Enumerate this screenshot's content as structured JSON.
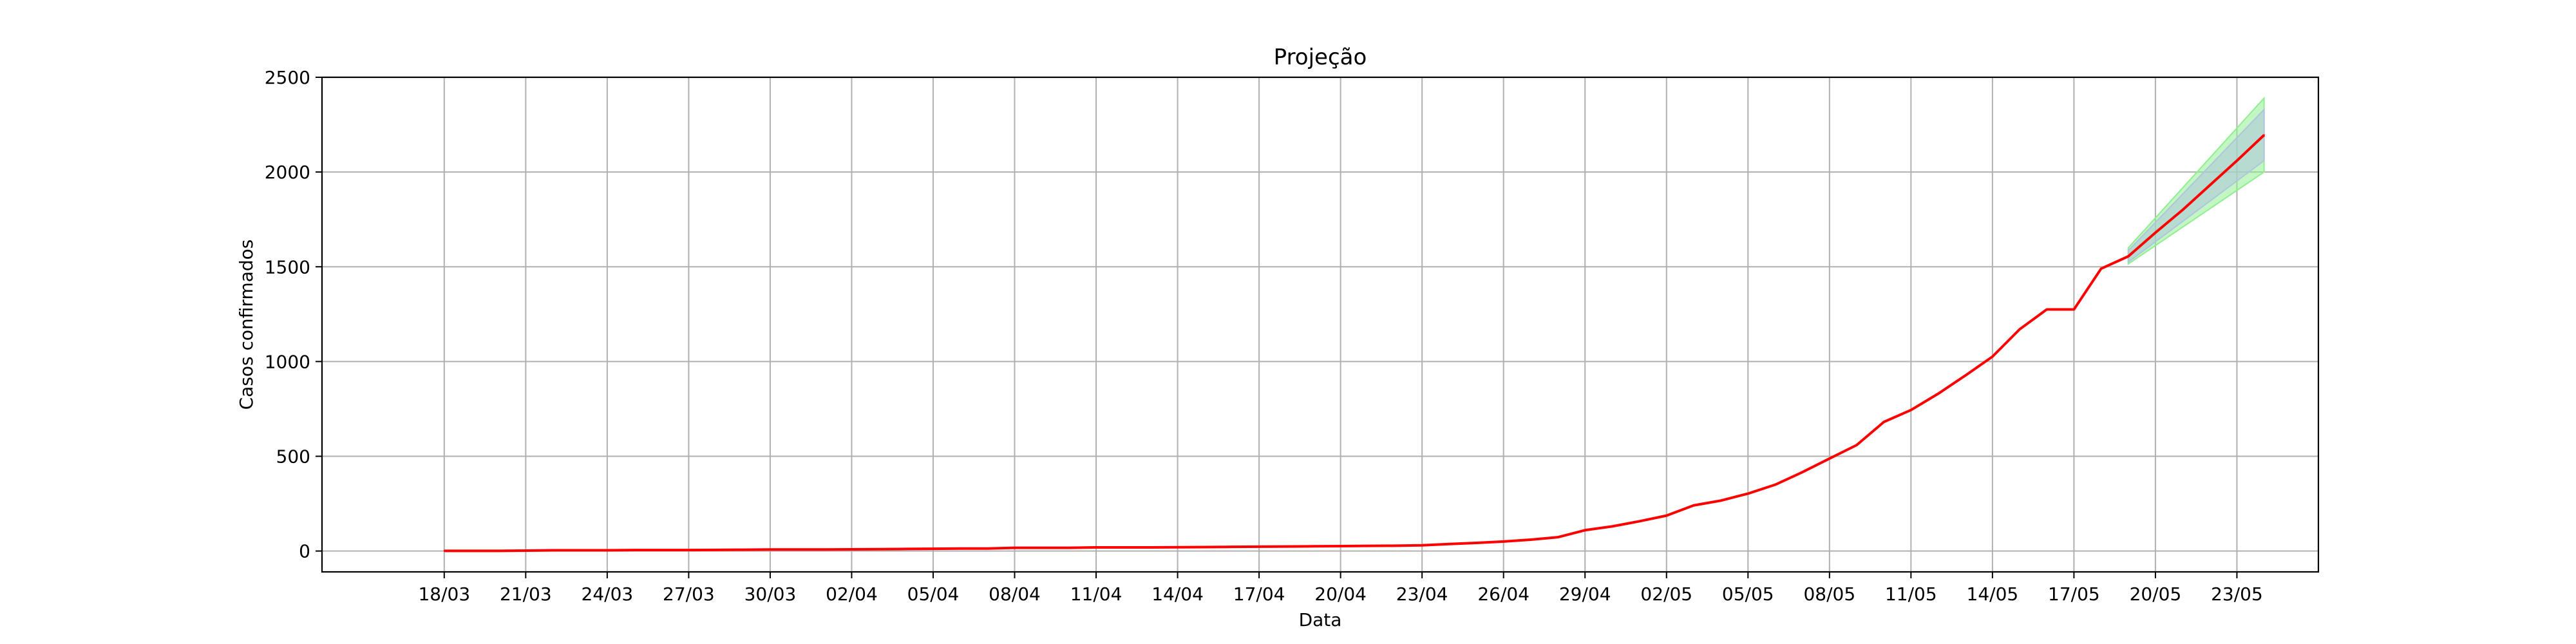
{
  "chart_data": {
    "type": "line",
    "title": "Projeção",
    "xlabel": "Data",
    "ylabel": "Casos confirmados",
    "ylim": [
      -110,
      2500
    ],
    "xlim": [
      -4.5,
      69.0
    ],
    "grid": true,
    "y_ticks": [
      0,
      500,
      1000,
      1500,
      2000,
      2500
    ],
    "x_ticks": [
      {
        "x": 0,
        "label": "18/03"
      },
      {
        "x": 3,
        "label": "21/03"
      },
      {
        "x": 6,
        "label": "24/03"
      },
      {
        "x": 9,
        "label": "27/03"
      },
      {
        "x": 12,
        "label": "30/03"
      },
      {
        "x": 15,
        "label": "02/04"
      },
      {
        "x": 18,
        "label": "05/04"
      },
      {
        "x": 21,
        "label": "08/04"
      },
      {
        "x": 24,
        "label": "11/04"
      },
      {
        "x": 27,
        "label": "14/04"
      },
      {
        "x": 30,
        "label": "17/04"
      },
      {
        "x": 33,
        "label": "20/04"
      },
      {
        "x": 36,
        "label": "23/04"
      },
      {
        "x": 39,
        "label": "26/04"
      },
      {
        "x": 42,
        "label": "29/04"
      },
      {
        "x": 45,
        "label": "02/05"
      },
      {
        "x": 48,
        "label": "05/05"
      },
      {
        "x": 51,
        "label": "08/05"
      },
      {
        "x": 54,
        "label": "11/05"
      },
      {
        "x": 57,
        "label": "14/05"
      },
      {
        "x": 60,
        "label": "17/05"
      },
      {
        "x": 63,
        "label": "20/05"
      },
      {
        "x": 66,
        "label": "23/05"
      }
    ],
    "colors": {
      "line": "#ff0000",
      "band_inner": "#b0c4de",
      "band_outer": "#90ee90",
      "grid": "#b0b0b0",
      "axes": "#000000"
    },
    "series": [
      {
        "color": "#ff0000",
        "x": [
          0,
          1,
          2,
          3,
          4,
          5,
          6,
          7,
          8,
          9,
          10,
          11,
          12,
          13,
          14,
          15,
          16,
          17,
          18,
          19,
          20,
          21,
          22,
          23,
          24,
          25,
          26,
          27,
          28,
          29,
          30,
          31,
          32,
          33,
          34,
          35,
          36,
          37,
          38,
          39,
          40,
          41,
          42,
          43,
          44,
          45,
          46,
          47,
          48,
          49,
          50,
          51,
          52,
          53,
          54,
          55,
          56,
          57,
          58,
          59,
          60,
          61,
          62,
          63,
          64,
          65,
          66,
          67
        ],
        "y": [
          1,
          1,
          1,
          2,
          4,
          4,
          4,
          5,
          5,
          5,
          6,
          7,
          8,
          8,
          8,
          9,
          10,
          11,
          12,
          13,
          13,
          17,
          17,
          17,
          19,
          19,
          19,
          20,
          21,
          22,
          23,
          24,
          25,
          26,
          27,
          28,
          30,
          37,
          43,
          50,
          60,
          73,
          110,
          130,
          157,
          187,
          241,
          266,
          303,
          350,
          416,
          488,
          559,
          681,
          744,
          830,
          926,
          1026,
          1170,
          1275,
          1275,
          1490,
          1555,
          1680,
          1800,
          1930,
          2060,
          2195
        ]
      }
    ],
    "bands": [
      {
        "color": "#90ee90",
        "x": [
          62,
          67
        ],
        "lower": [
          1515,
          2000
        ],
        "upper": [
          1600,
          2390
        ]
      },
      {
        "color": "#b0c4de",
        "x": [
          62,
          67
        ],
        "lower": [
          1525,
          2060
        ],
        "upper": [
          1585,
          2330
        ]
      }
    ]
  }
}
